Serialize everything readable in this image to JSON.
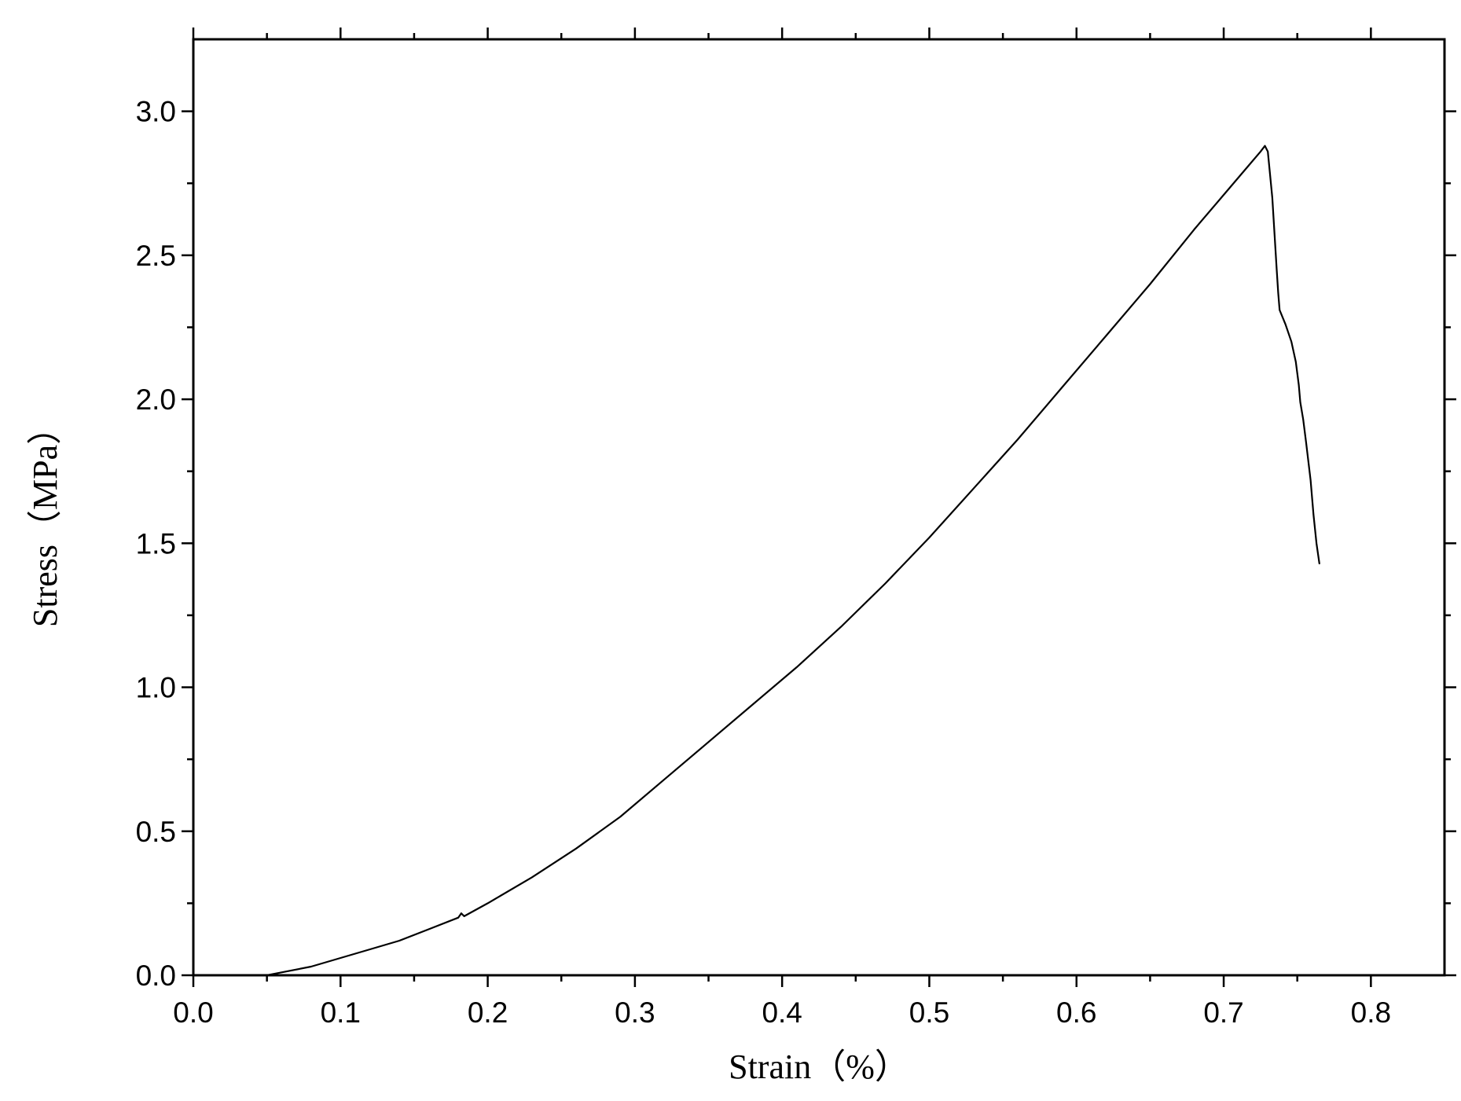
{
  "chart_data": {
    "type": "line",
    "title": "",
    "xlabel": "Strain（%）",
    "ylabel": "Stress（MPa）",
    "xlim": [
      0.0,
      0.85
    ],
    "ylim": [
      0.0,
      3.25
    ],
    "x_ticks": [
      0.0,
      0.1,
      0.2,
      0.3,
      0.4,
      0.5,
      0.6,
      0.7,
      0.8
    ],
    "x_tick_labels": [
      "0.0",
      "0.1",
      "0.2",
      "0.3",
      "0.4",
      "0.5",
      "0.6",
      "0.7",
      "0.8"
    ],
    "y_ticks": [
      0.0,
      0.5,
      1.0,
      1.5,
      2.0,
      2.5,
      3.0
    ],
    "y_tick_labels": [
      "0.0",
      "0.5",
      "1.0",
      "1.5",
      "2.0",
      "2.5",
      "3.0"
    ],
    "grid": false,
    "legend": "none",
    "line_color": "#000000",
    "series": [
      {
        "x": [
          0.05,
          0.06,
          0.08,
          0.1,
          0.12,
          0.14,
          0.16,
          0.18,
          0.182,
          0.184,
          0.2,
          0.23,
          0.26,
          0.29,
          0.32,
          0.35,
          0.38,
          0.41,
          0.44,
          0.47,
          0.5,
          0.53,
          0.56,
          0.59,
          0.62,
          0.65,
          0.68,
          0.7,
          0.715,
          0.725,
          0.728,
          0.73,
          0.733,
          0.736,
          0.737,
          0.738,
          0.742,
          0.746,
          0.749,
          0.751,
          0.752,
          0.754,
          0.756,
          0.759,
          0.761,
          0.763,
          0.765
        ],
        "y": [
          0.0,
          0.01,
          0.03,
          0.06,
          0.09,
          0.12,
          0.16,
          0.2,
          0.215,
          0.205,
          0.25,
          0.34,
          0.44,
          0.55,
          0.68,
          0.81,
          0.94,
          1.07,
          1.21,
          1.36,
          1.52,
          1.69,
          1.86,
          2.04,
          2.22,
          2.4,
          2.59,
          2.71,
          2.8,
          2.86,
          2.88,
          2.86,
          2.7,
          2.45,
          2.37,
          2.31,
          2.26,
          2.2,
          2.13,
          2.05,
          1.99,
          1.93,
          1.85,
          1.72,
          1.6,
          1.5,
          1.43
        ]
      }
    ]
  }
}
